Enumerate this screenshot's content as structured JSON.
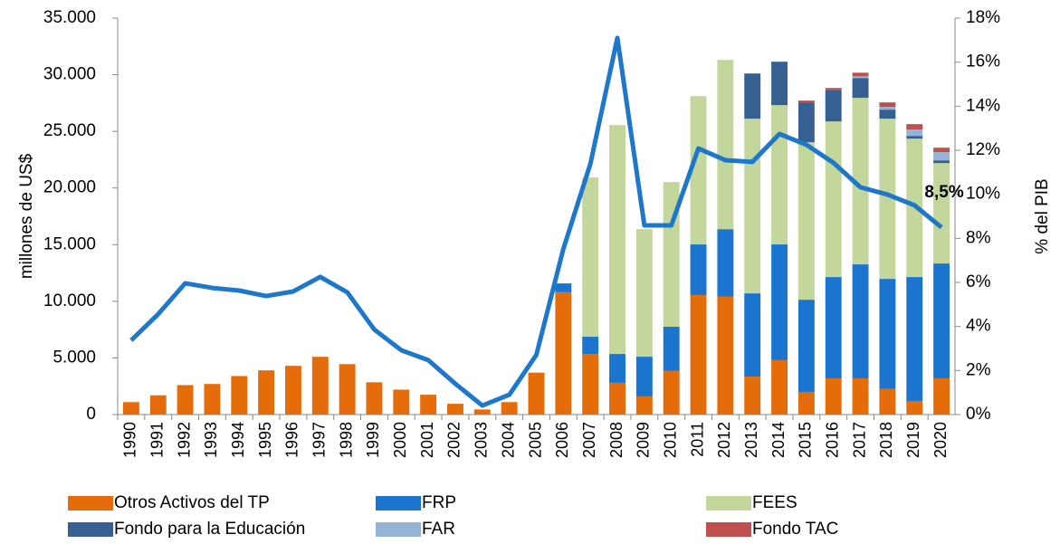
{
  "chart_data": {
    "type": "bar",
    "y_label": "millones de US$",
    "y2_label": "% del PIB",
    "categories": [
      "1990",
      "1991",
      "1992",
      "1993",
      "1994",
      "1995",
      "1996",
      "1997",
      "1998",
      "1999",
      "2000",
      "2001",
      "2002",
      "2003",
      "2004",
      "2005",
      "2006",
      "2007",
      "2008",
      "2009",
      "2010",
      "2011",
      "2012",
      "2013",
      "2014",
      "2015",
      "2016",
      "2017",
      "2018",
      "2019",
      "2020"
    ],
    "ylim": [
      0,
      35000
    ],
    "yticks": [
      {
        "value": 0,
        "label": "0"
      },
      {
        "value": 5000,
        "label": "5.000"
      },
      {
        "value": 10000,
        "label": "10.000"
      },
      {
        "value": 15000,
        "label": "15.000"
      },
      {
        "value": 20000,
        "label": "20.000"
      },
      {
        "value": 25000,
        "label": "25.000"
      },
      {
        "value": 30000,
        "label": "30.000"
      },
      {
        "value": 35000,
        "label": "35.000"
      }
    ],
    "y2lim": [
      0,
      18
    ],
    "y2ticks": [
      {
        "value": 0,
        "label": "0%"
      },
      {
        "value": 2,
        "label": "2%"
      },
      {
        "value": 4,
        "label": "4%"
      },
      {
        "value": 6,
        "label": "6%"
      },
      {
        "value": 8,
        "label": "8%"
      },
      {
        "value": 10,
        "label": "10%"
      },
      {
        "value": 12,
        "label": "12%"
      },
      {
        "value": 14,
        "label": "14%"
      },
      {
        "value": 16,
        "label": "16%"
      },
      {
        "value": 18,
        "label": "18%"
      }
    ],
    "stacked": true,
    "series": [
      {
        "name": "Otros Activos del TP",
        "color": "#E46C0A",
        "values": [
          1100,
          1700,
          2600,
          2700,
          3400,
          3900,
          4300,
          5100,
          4450,
          2850,
          2200,
          1750,
          950,
          450,
          1100,
          3700,
          10800,
          5350,
          2800,
          1600,
          3850,
          10550,
          10400,
          3350,
          4800,
          2000,
          3200,
          3200,
          2250,
          1200,
          3200
        ]
      },
      {
        "name": "FRP",
        "color": "#1B75CF",
        "values": [
          null,
          null,
          null,
          null,
          null,
          null,
          null,
          null,
          null,
          null,
          null,
          null,
          null,
          null,
          null,
          null,
          780,
          1520,
          2550,
          3510,
          3900,
          4470,
          5970,
          7350,
          10220,
          8140,
          8940,
          10060,
          9730,
          10940,
          10140
        ]
      },
      {
        "name": "FEES",
        "color": "#C3D69B",
        "values": [
          null,
          null,
          null,
          null,
          null,
          null,
          null,
          null,
          null,
          null,
          null,
          null,
          null,
          null,
          null,
          null,
          null,
          14060,
          20210,
          11260,
          12780,
          13090,
          14940,
          15420,
          12300,
          13900,
          13740,
          14700,
          14140,
          12220,
          8860
        ]
      },
      {
        "name": "Fondo para la Educación",
        "color": "#366092",
        "values": [
          null,
          null,
          null,
          null,
          null,
          null,
          null,
          null,
          null,
          null,
          null,
          null,
          null,
          null,
          null,
          null,
          null,
          null,
          null,
          null,
          null,
          null,
          null,
          3990,
          3830,
          3520,
          2790,
          1750,
          800,
          240,
          240
        ]
      },
      {
        "name": "FAR",
        "color": "#95B3D7",
        "values": [
          null,
          null,
          null,
          null,
          null,
          null,
          null,
          null,
          null,
          null,
          null,
          null,
          null,
          null,
          null,
          null,
          null,
          null,
          null,
          null,
          null,
          null,
          null,
          null,
          null,
          null,
          null,
          150,
          240,
          560,
          720
        ]
      },
      {
        "name": "Fondo TAC",
        "color": "#C0504D",
        "values": [
          null,
          null,
          null,
          null,
          null,
          null,
          null,
          null,
          null,
          null,
          null,
          null,
          null,
          null,
          null,
          null,
          null,
          null,
          null,
          null,
          null,
          null,
          null,
          null,
          null,
          160,
          160,
          320,
          400,
          480,
          400
        ]
      },
      {
        "type": "line",
        "axis": "y2",
        "color": "#1F77C9",
        "values": [
          3.37,
          4.56,
          5.96,
          5.75,
          5.63,
          5.38,
          5.59,
          6.25,
          5.55,
          3.86,
          2.92,
          2.47,
          1.4,
          0.41,
          0.9,
          2.71,
          7.52,
          11.38,
          17.1,
          8.59,
          8.59,
          12.08,
          11.55,
          11.47,
          12.74,
          12.25,
          11.43,
          10.32,
          9.99,
          9.5,
          8.5
        ],
        "value_labels": [
          null,
          null,
          null,
          null,
          null,
          null,
          null,
          null,
          null,
          null,
          null,
          null,
          null,
          null,
          null,
          null,
          null,
          null,
          null,
          null,
          null,
          null,
          null,
          null,
          null,
          null,
          null,
          null,
          null,
          null,
          "8,5%"
        ]
      }
    ],
    "legend": "bottom"
  }
}
